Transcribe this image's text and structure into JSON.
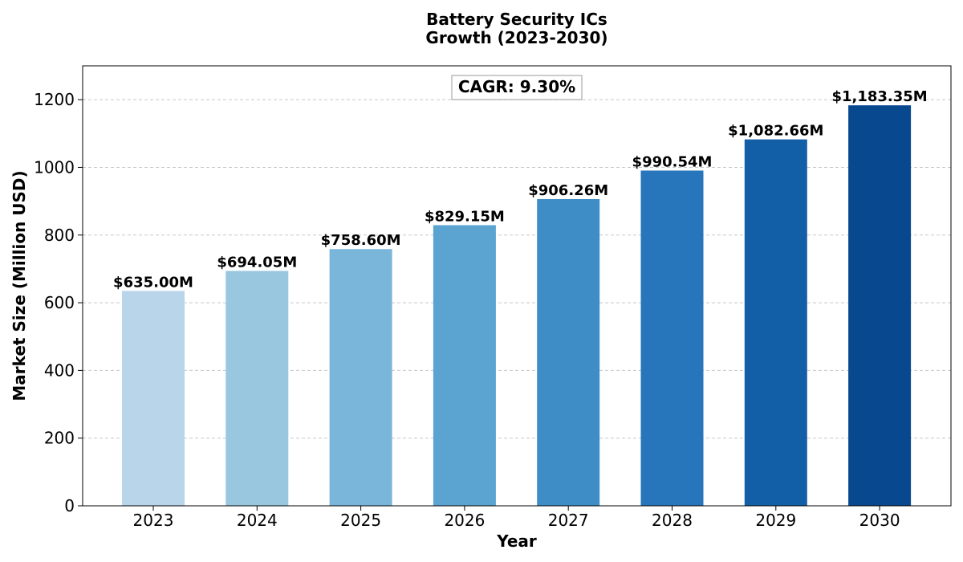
{
  "chart_data": {
    "type": "bar",
    "title_lines": [
      "Battery Security ICs",
      "Growth (2023-2030)"
    ],
    "xlabel": "Year",
    "ylabel": "Market Size (Million USD)",
    "categories": [
      "2023",
      "2024",
      "2025",
      "2026",
      "2027",
      "2028",
      "2029",
      "2030"
    ],
    "values": [
      635.0,
      694.05,
      758.6,
      829.15,
      906.26,
      990.54,
      1082.66,
      1183.35
    ],
    "value_labels": [
      "$635.00M",
      "$694.05M",
      "$758.60M",
      "$829.15M",
      "$906.26M",
      "$990.54M",
      "$1,082.66M",
      "$1,183.35M"
    ],
    "bar_colors": [
      "#b9d5ea",
      "#9ac7e0",
      "#7ab6d9",
      "#5ba3d0",
      "#3f8dc6",
      "#2776bb",
      "#125fa8",
      "#08488e"
    ],
    "ylim": [
      0,
      1300
    ],
    "yticks": [
      0,
      200,
      400,
      600,
      800,
      1000,
      1200
    ],
    "grid": true,
    "annotation": "CAGR: 9.30%"
  }
}
